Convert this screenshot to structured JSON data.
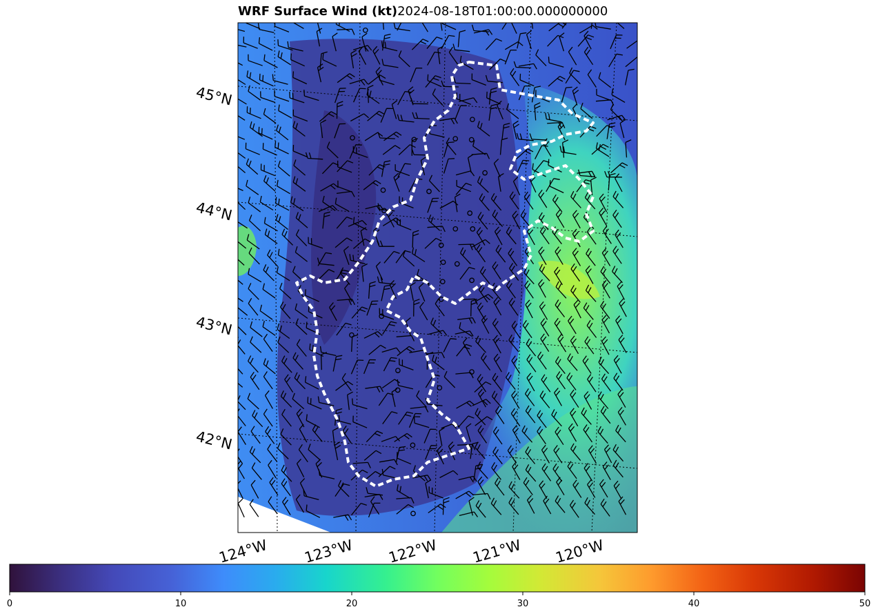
{
  "title": {
    "main": "WRF Surface Wind (kt)",
    "time": "2024-08-18T01:00:00.000000000"
  },
  "map": {
    "lat_labels": [
      "45°N",
      "44°N",
      "43°N",
      "42°N"
    ],
    "lon_labels": [
      "124°W",
      "123°W",
      "122°W",
      "121°W",
      "120°W"
    ]
  },
  "colorbar": {
    "min": 0,
    "max": 50,
    "ticks": [
      "0",
      "10",
      "20",
      "30",
      "40",
      "50"
    ],
    "colormap": [
      "#30123b",
      "#4662d7",
      "#3e9bfe",
      "#1ae4b6",
      "#72fe5e",
      "#c8ef34",
      "#faba39",
      "#f66b19",
      "#cb2a04",
      "#7a0403"
    ]
  },
  "colors": {
    "field_low": "#3a3c8f",
    "field_mid": "#3f86f0",
    "field_high": "#64f06a",
    "barb": "#000000",
    "boundary": "#ffffff"
  }
}
